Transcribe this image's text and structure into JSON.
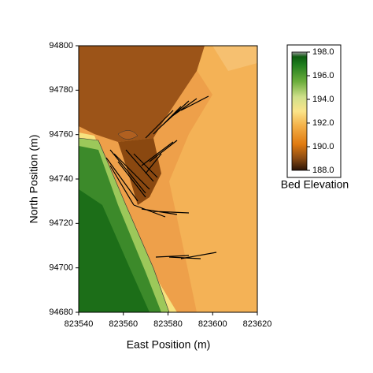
{
  "chart_data": {
    "type": "contour",
    "xlabel": "East Position (m)",
    "ylabel": "North Position (m)",
    "xlim": [
      823540,
      823620
    ],
    "xticks": [
      823540,
      823560,
      823580,
      823600,
      823620
    ],
    "ylim": [
      94680,
      94800
    ],
    "yticks": [
      94680,
      94700,
      94720,
      94740,
      94760,
      94780,
      94800
    ],
    "colorbar": {
      "title": "Bed Elevation",
      "lim": [
        188,
        198
      ],
      "ticks": [
        {
          "value": 188,
          "label": "188.0"
        },
        {
          "value": 190,
          "label": "190.0"
        },
        {
          "value": 192,
          "label": "192.0"
        },
        {
          "value": 194,
          "label": "194.0"
        },
        {
          "value": 196,
          "label": "196.0"
        },
        {
          "value": 198,
          "label": "198.0"
        }
      ]
    }
  }
}
